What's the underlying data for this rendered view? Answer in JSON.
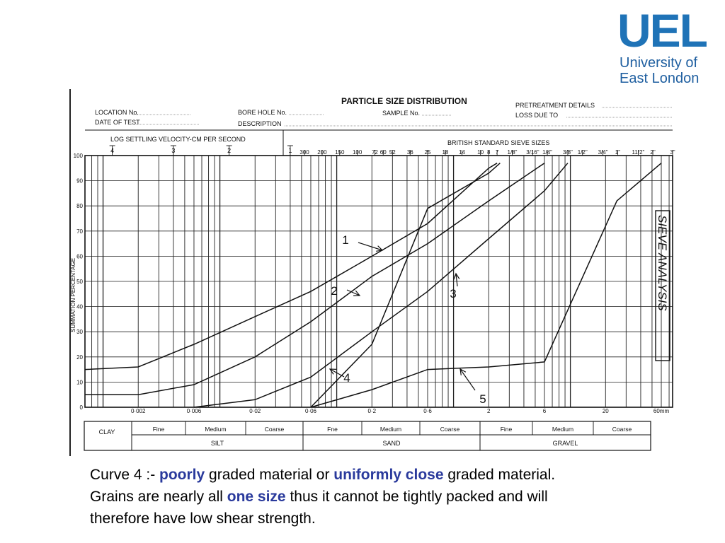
{
  "logo": {
    "mark": "UEL",
    "line1": "University of",
    "line2": "East London"
  },
  "form": {
    "title": "PARTICLE SIZE DISTRIBUTION",
    "fields": {
      "location": "LOCATION No.",
      "date": "DATE OF TEST",
      "borehole": "BORE HOLE No.",
      "description": "DESCRIPTION",
      "sample": "SAMPLE No.",
      "pretreatment": "PRETREATMENT DETAILS",
      "loss": "LOSS DUE TO"
    }
  },
  "chart_data": {
    "type": "line",
    "x_scale": "log",
    "y_scale": "linear",
    "ylim": [
      0,
      100
    ],
    "xlim_mm": [
      0.0007,
      75
    ],
    "ylabel": "SUMMATION PERCENTAGE",
    "top_left_label": "LOG SETTLING VELOCITY-CM PER SECOND",
    "top_left_ticks": [
      {
        "label": "4",
        "x_mm": 0.0012
      },
      {
        "label": "3",
        "x_mm": 0.004
      },
      {
        "label": "2",
        "x_mm": 0.012
      },
      {
        "label": "1",
        "x_mm": 0.04
      }
    ],
    "top_right_label": "BRITISH STANDARD SIEVE SIZES",
    "sieve_ticks": [
      {
        "label": "300",
        "x_mm": 0.053
      },
      {
        "label": "200",
        "x_mm": 0.075
      },
      {
        "label": "150",
        "x_mm": 0.106
      },
      {
        "label": "100",
        "x_mm": 0.15
      },
      {
        "label": "72",
        "x_mm": 0.212
      },
      {
        "label": "60",
        "x_mm": 0.25
      },
      {
        "label": "52",
        "x_mm": 0.3
      },
      {
        "label": "36",
        "x_mm": 0.425
      },
      {
        "label": "25",
        "x_mm": 0.6
      },
      {
        "label": "18",
        "x_mm": 0.85
      },
      {
        "label": "14",
        "x_mm": 1.18
      },
      {
        "label": "10",
        "x_mm": 1.7
      },
      {
        "label": "8",
        "x_mm": 2.0
      },
      {
        "label": "7",
        "x_mm": 2.36
      },
      {
        "label": "1/8\"",
        "x_mm": 3.18
      },
      {
        "label": "3/16\"",
        "x_mm": 4.76
      },
      {
        "label": "1/4\"",
        "x_mm": 6.35
      },
      {
        "label": "3/8\"",
        "x_mm": 9.5
      },
      {
        "label": "1/2\"",
        "x_mm": 12.7
      },
      {
        "label": "3/4\"",
        "x_mm": 19.0
      },
      {
        "label": "1\"",
        "x_mm": 25.4
      },
      {
        "label": "11/2\"",
        "x_mm": 38.1
      },
      {
        "label": "2\"",
        "x_mm": 50.8
      },
      {
        "label": "3\"",
        "x_mm": 75.0
      }
    ],
    "bottom_ticks": [
      {
        "label": "0·002",
        "x_mm": 0.002
      },
      {
        "label": "0·006",
        "x_mm": 0.006
      },
      {
        "label": "0·02",
        "x_mm": 0.02
      },
      {
        "label": "0·06",
        "x_mm": 0.06
      },
      {
        "label": "0·2",
        "x_mm": 0.2
      },
      {
        "label": "0·6",
        "x_mm": 0.6
      },
      {
        "label": "2",
        "x_mm": 2.0
      },
      {
        "label": "6",
        "x_mm": 6.0
      },
      {
        "label": "20",
        "x_mm": 20.0
      },
      {
        "label": "60mm",
        "x_mm": 60.0
      }
    ],
    "y_ticks": [
      0,
      10,
      20,
      30,
      40,
      50,
      60,
      70,
      80,
      90,
      100
    ],
    "series": [
      {
        "name": "1",
        "points": [
          [
            0.0007,
            15
          ],
          [
            0.002,
            16
          ],
          [
            0.006,
            25
          ],
          [
            0.02,
            36
          ],
          [
            0.06,
            46
          ],
          [
            0.2,
            60
          ],
          [
            0.6,
            73
          ],
          [
            2.0,
            95
          ],
          [
            2.36,
            97
          ]
        ]
      },
      {
        "name": "2",
        "points": [
          [
            0.0007,
            5
          ],
          [
            0.002,
            5
          ],
          [
            0.006,
            9
          ],
          [
            0.02,
            20
          ],
          [
            0.06,
            34
          ],
          [
            0.2,
            52
          ],
          [
            0.6,
            65
          ],
          [
            2.0,
            82
          ],
          [
            6.0,
            97
          ]
        ]
      },
      {
        "name": "3",
        "points": [
          [
            0.006,
            0
          ],
          [
            0.02,
            3
          ],
          [
            0.06,
            12
          ],
          [
            0.2,
            30
          ],
          [
            0.6,
            46
          ],
          [
            2.0,
            67
          ],
          [
            6.0,
            86
          ],
          [
            9.5,
            97
          ]
        ]
      },
      {
        "name": "4",
        "points": [
          [
            0.06,
            0
          ],
          [
            0.2,
            25
          ],
          [
            0.6,
            79
          ],
          [
            2.0,
            93
          ],
          [
            2.5,
            97
          ]
        ]
      },
      {
        "name": "5",
        "points": [
          [
            0.06,
            0
          ],
          [
            0.2,
            7
          ],
          [
            0.6,
            15
          ],
          [
            2.0,
            16
          ],
          [
            6.0,
            18
          ],
          [
            25.0,
            82
          ],
          [
            60.0,
            97
          ]
        ]
      }
    ],
    "annotations": [
      {
        "text": "1",
        "series": "1"
      },
      {
        "text": "2",
        "series": "2"
      },
      {
        "text": "3",
        "series": "3"
      },
      {
        "text": "4",
        "series": "4"
      },
      {
        "text": "5",
        "series": "5"
      }
    ],
    "side_note": "SIEVE ANALYSIS",
    "classification": {
      "clay": "CLAY",
      "groups": [
        {
          "name": "SILT",
          "subs": [
            "Fine",
            "Medium",
            "Coarse"
          ]
        },
        {
          "name": "SAND",
          "subs": [
            "Fne",
            "Medium",
            "Coarse"
          ]
        },
        {
          "name": "GRAVEL",
          "subs": [
            "Fine",
            "Medium",
            "Coarse"
          ]
        }
      ]
    }
  },
  "caption": {
    "line1_a": "Curve 4 :- ",
    "line1_b": "poorly",
    "line1_c": " graded material or ",
    "line1_d": "uniformly close",
    "line1_e": " graded material.",
    "line2_a": "Grains are nearly all ",
    "line2_b": "one size",
    "line2_c": " thus it cannot be tightly packed and will",
    "line3": "therefore have low shear strength."
  }
}
